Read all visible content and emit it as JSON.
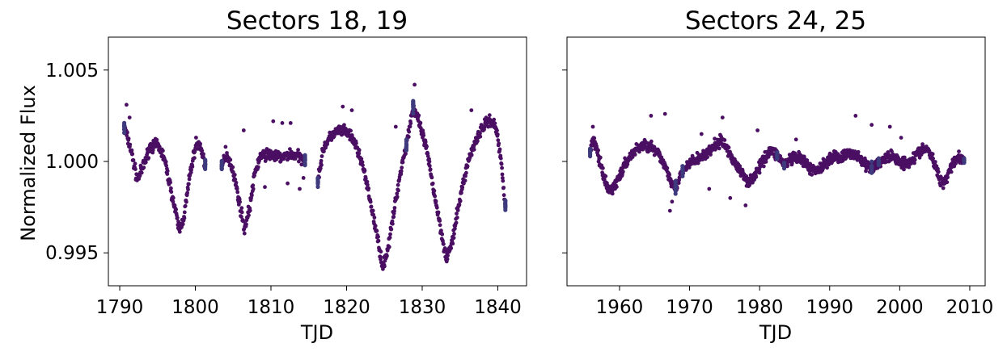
{
  "figure": {
    "ylabel": "Normalized Flux"
  },
  "chart_data": [
    {
      "type": "scatter",
      "title": "Sectors 18, 19",
      "xlabel": "TJD",
      "ylabel": "Normalized Flux",
      "xlim": [
        1788.5,
        1843.8
      ],
      "ylim": [
        0.9932,
        1.0068
      ],
      "x_ticks": [
        1790,
        1800,
        1810,
        1820,
        1830,
        1840
      ],
      "y_ticks": [
        0.995,
        1.0,
        1.005
      ],
      "y_tick_labels": [
        "0.995",
        "1.000",
        "1.005"
      ],
      "grid": false,
      "colors": {
        "points": "#4a0f62",
        "edge_points": "#3e3a7e"
      },
      "segments": [
        {
          "start": 1790.6,
          "end": 1801.3
        },
        {
          "start": 1803.5,
          "end": 1814.5
        },
        {
          "start": 1816.2,
          "end": 1827.9
        },
        {
          "start": 1828.8,
          "end": 1841.0
        }
      ],
      "trend": [
        [
          1790.6,
          1.0019
        ],
        [
          1791.5,
          1.0006
        ],
        [
          1792.3,
          0.999
        ],
        [
          1793.0,
          0.9996
        ],
        [
          1794.0,
          1.0008
        ],
        [
          1795.0,
          1.0009
        ],
        [
          1795.8,
          1.0003
        ],
        [
          1796.6,
          0.9988
        ],
        [
          1797.4,
          0.9972
        ],
        [
          1797.9,
          0.9962
        ],
        [
          1798.5,
          0.997
        ],
        [
          1799.3,
          0.9993
        ],
        [
          1800.1,
          1.001
        ],
        [
          1800.7,
          1.0008
        ],
        [
          1801.3,
          0.9998
        ],
        [
          1803.5,
          0.9998
        ],
        [
          1804.3,
          1.0003
        ],
        [
          1805.0,
          0.9995
        ],
        [
          1805.8,
          0.9978
        ],
        [
          1806.5,
          0.9963
        ],
        [
          1807.2,
          0.9975
        ],
        [
          1807.9,
          0.9994
        ],
        [
          1808.6,
          1.0003
        ],
        [
          1809.5,
          1.0004
        ],
        [
          1810.5,
          1.0003
        ],
        [
          1811.5,
          1.0002
        ],
        [
          1812.5,
          1.0004
        ],
        [
          1813.5,
          1.0003
        ],
        [
          1814.5,
          1.0001
        ],
        [
          1816.2,
          0.999
        ],
        [
          1817.0,
          1.0008
        ],
        [
          1818.0,
          1.0014
        ],
        [
          1819.0,
          1.0017
        ],
        [
          1820.0,
          1.0016
        ],
        [
          1821.0,
          1.0011
        ],
        [
          1822.0,
          1.0
        ],
        [
          1823.0,
          0.9981
        ],
        [
          1824.0,
          0.996
        ],
        [
          1824.8,
          0.9942
        ],
        [
          1825.6,
          0.9955
        ],
        [
          1826.4,
          0.9976
        ],
        [
          1827.2,
          0.9996
        ],
        [
          1827.9,
          1.0009
        ],
        [
          1828.8,
          1.003
        ],
        [
          1829.5,
          1.0022
        ],
        [
          1830.5,
          1.0008
        ],
        [
          1831.5,
          0.9985
        ],
        [
          1832.5,
          0.9962
        ],
        [
          1833.2,
          0.9947
        ],
        [
          1834.0,
          0.9956
        ],
        [
          1835.0,
          0.998
        ],
        [
          1836.0,
          0.9999
        ],
        [
          1837.0,
          1.0011
        ],
        [
          1838.0,
          1.0019
        ],
        [
          1839.0,
          1.0023
        ],
        [
          1839.8,
          1.0018
        ],
        [
          1840.5,
          0.9998
        ],
        [
          1841.0,
          0.9976
        ]
      ],
      "outliers": [
        [
          1790.9,
          1.0031
        ],
        [
          1791.3,
          1.0024
        ],
        [
          1806.4,
          1.0017
        ],
        [
          1810.3,
          1.0022
        ],
        [
          1811.5,
          1.0021
        ],
        [
          1812.6,
          1.0021
        ],
        [
          1819.5,
          1.003
        ],
        [
          1820.7,
          1.0028
        ],
        [
          1829.0,
          1.0042
        ],
        [
          1809.2,
          0.9986
        ],
        [
          1812.2,
          0.9988
        ],
        [
          1813.8,
          0.9985
        ],
        [
          1826.5,
          1.0019
        ],
        [
          1836.5,
          1.0028
        ],
        [
          1804.0,
          1.0008
        ],
        [
          1814.3,
          0.9991
        ]
      ]
    },
    {
      "type": "scatter",
      "title": "Sectors 24, 25",
      "xlabel": "TJD",
      "ylabel": "",
      "xlim": [
        1952.5,
        2012.2
      ],
      "ylim": [
        0.9932,
        1.0068
      ],
      "x_ticks": [
        1960,
        1970,
        1980,
        1990,
        2000,
        2010
      ],
      "y_ticks": [
        0.995,
        1.0,
        1.005
      ],
      "y_tick_labels": [],
      "grid": false,
      "colors": {
        "points": "#4a0f62",
        "edge_points": "#3e3a7e"
      },
      "segments": [
        {
          "start": 1955.8,
          "end": 1968.0
        },
        {
          "start": 1969.0,
          "end": 1982.5
        },
        {
          "start": 1983.5,
          "end": 1996.0
        },
        {
          "start": 1997.0,
          "end": 2009.2
        }
      ],
      "trend": [
        [
          1955.8,
          1.0006
        ],
        [
          1956.3,
          1.0012
        ],
        [
          1957.0,
          1.0003
        ],
        [
          1957.8,
          0.999
        ],
        [
          1958.6,
          0.9983
        ],
        [
          1959.5,
          0.9988
        ],
        [
          1960.5,
          0.9996
        ],
        [
          1961.5,
          1.0003
        ],
        [
          1962.5,
          1.0007
        ],
        [
          1963.5,
          1.0009
        ],
        [
          1964.5,
          1.0008
        ],
        [
          1965.5,
          1.0004
        ],
        [
          1966.5,
          0.9998
        ],
        [
          1967.3,
          0.999
        ],
        [
          1968.0,
          0.9986
        ],
        [
          1969.0,
          0.9994
        ],
        [
          1970.0,
          0.9999
        ],
        [
          1971.0,
          1.0001
        ],
        [
          1972.0,
          1.0003
        ],
        [
          1973.0,
          1.0006
        ],
        [
          1974.0,
          1.001
        ],
        [
          1974.7,
          1.0011
        ],
        [
          1975.5,
          1.0006
        ],
        [
          1976.5,
          0.9999
        ],
        [
          1977.5,
          0.9993
        ],
        [
          1978.5,
          0.9989
        ],
        [
          1979.5,
          0.9993
        ],
        [
          1980.5,
          1.0001
        ],
        [
          1981.5,
          1.0006
        ],
        [
          1982.5,
          1.0004
        ],
        [
          1983.5,
          0.9998
        ],
        [
          1984.5,
          1.0001
        ],
        [
          1985.5,
          1.0002
        ],
        [
          1986.5,
          0.9999
        ],
        [
          1987.5,
          0.9995
        ],
        [
          1988.5,
          0.9996
        ],
        [
          1989.5,
          1.0
        ],
        [
          1990.5,
          1.0003
        ],
        [
          1991.5,
          1.0002
        ],
        [
          1992.5,
          1.0004
        ],
        [
          1993.5,
          1.0004
        ],
        [
          1994.5,
          1.0001
        ],
        [
          1995.3,
          0.9997
        ],
        [
          1996.0,
          0.9996
        ],
        [
          1997.0,
          0.9999
        ],
        [
          1998.0,
          1.0002
        ],
        [
          1999.0,
          1.0003
        ],
        [
          2000.0,
          1.0
        ],
        [
          2001.0,
          0.9999
        ],
        [
          2002.0,
          1.0002
        ],
        [
          2003.0,
          1.0006
        ],
        [
          2003.8,
          1.0007
        ],
        [
          2004.5,
          1.0003
        ],
        [
          2005.3,
          0.9995
        ],
        [
          2006.0,
          0.9988
        ],
        [
          2006.8,
          0.9992
        ],
        [
          2007.6,
          1.0
        ],
        [
          2008.4,
          1.0002
        ],
        [
          2009.2,
          1.0001
        ]
      ],
      "outliers": [
        [
          1956.2,
          1.0019
        ],
        [
          1964.5,
          1.0025
        ],
        [
          1966.5,
          1.0026
        ],
        [
          1971.7,
          1.0015
        ],
        [
          1974.7,
          1.0024
        ],
        [
          1979.7,
          1.0017
        ],
        [
          1993.7,
          1.0025
        ],
        [
          1996.0,
          1.002
        ],
        [
          1998.6,
          1.0019
        ],
        [
          1967.2,
          0.9973
        ],
        [
          1975.8,
          0.998
        ],
        [
          1978.0,
          0.9976
        ],
        [
          1967.5,
          0.9978
        ],
        [
          1972.8,
          0.9985
        ],
        [
          1985.2,
          1.0012
        ],
        [
          2000.2,
          1.0013
        ]
      ]
    }
  ]
}
